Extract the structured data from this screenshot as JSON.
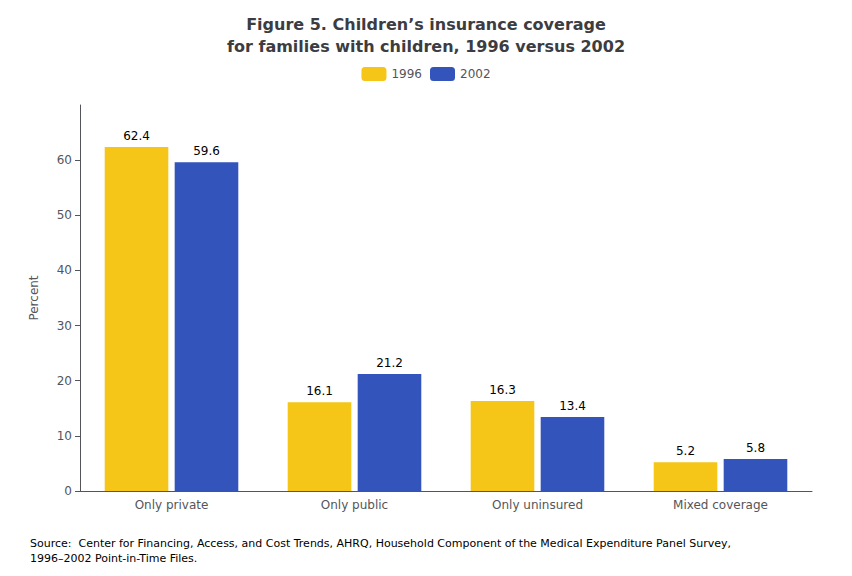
{
  "chart_data": {
    "type": "bar",
    "title": "Figure 5. Children’s insurance coverage\nfor families with children, 1996 versus 2002",
    "categories": [
      "Only private",
      "Only public",
      "Only uninsured",
      "Mixed coverage"
    ],
    "series": [
      {
        "name": "1996",
        "color": "#F5C518",
        "values": [
          62.4,
          16.1,
          16.3,
          5.2
        ]
      },
      {
        "name": "2002",
        "color": "#3355BB",
        "values": [
          59.6,
          21.2,
          13.4,
          5.8
        ]
      }
    ],
    "ylabel": "Percent",
    "ylim": [
      0,
      70
    ],
    "yticks": [
      0,
      10,
      20,
      30,
      40,
      50,
      60
    ],
    "grid": false,
    "legend": "top",
    "data_labels": true,
    "annotations": [
      "Source:  Center for Financing, Access, and Cost Trends, AHRQ, Household Component of the Medical Expenditure Panel Survey,\n1996–2002 Point-in-Time Files."
    ]
  }
}
